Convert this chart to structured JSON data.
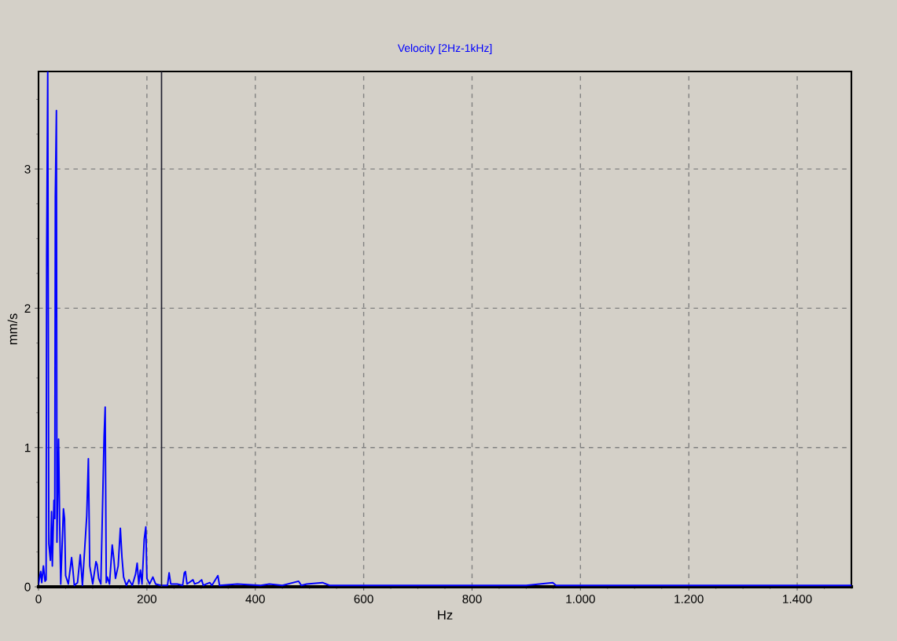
{
  "chart_data": {
    "type": "line",
    "title": "Velocity [2Hz-1kHz]",
    "xlabel": "Hz",
    "ylabel": "mm/s",
    "series": [
      {
        "color": "#0000ff",
        "x": [
          0,
          4,
          6,
          9,
          12,
          14,
          15,
          17,
          19,
          22,
          24,
          25.5,
          28.5,
          30,
          31,
          33,
          34,
          37,
          39,
          41,
          46,
          48,
          50,
          55,
          61,
          63,
          66,
          72,
          77,
          81,
          89,
          92,
          94.5,
          100,
          106,
          108,
          111,
          115,
          121,
          123,
          125,
          127,
          131,
          136,
          139,
          142,
          147,
          151,
          154,
          157,
          162,
          167,
          173,
          179,
          182,
          185,
          188,
          191,
          195,
          198,
          200,
          205,
          211,
          216,
          226,
          238,
          241,
          244,
          256,
          266,
          269,
          271,
          274,
          285,
          288,
          295,
          301,
          304,
          316,
          320,
          331,
          334,
          367,
          410,
          426,
          450,
          480,
          485,
          495,
          524,
          537,
          585,
          640,
          700,
          800,
          900,
          949,
          955,
          1100,
          1300,
          1500
        ],
        "values": [
          0.02,
          0.11,
          0.03,
          0.15,
          0.04,
          0.05,
          2.37,
          3.7,
          0.31,
          0.19,
          0.54,
          0.15,
          0.62,
          0.49,
          2.8,
          3.42,
          0.32,
          1.06,
          0.46,
          0.02,
          0.56,
          0.49,
          0.08,
          0.02,
          0.21,
          0.14,
          0.01,
          0.03,
          0.23,
          0.01,
          0.51,
          0.92,
          0.15,
          0.02,
          0.18,
          0.16,
          0.06,
          0.02,
          1.08,
          1.29,
          0.03,
          0.07,
          0.02,
          0.3,
          0.2,
          0.06,
          0.15,
          0.42,
          0.21,
          0.07,
          0.01,
          0.05,
          0.01,
          0.09,
          0.17,
          0.02,
          0.12,
          0.02,
          0.34,
          0.43,
          0.06,
          0.02,
          0.07,
          0.02,
          0.01,
          0.01,
          0.1,
          0.02,
          0.02,
          0.01,
          0.1,
          0.11,
          0.02,
          0.05,
          0.02,
          0.03,
          0.05,
          0.01,
          0.03,
          0.01,
          0.08,
          0.01,
          0.02,
          0.01,
          0.02,
          0.01,
          0.04,
          0.01,
          0.02,
          0.03,
          0.01,
          0.01,
          0.01,
          0.01,
          0.01,
          0.01,
          0.03,
          0.01,
          0.01,
          0.01,
          0.01
        ]
      }
    ],
    "xlim": [
      0,
      1500
    ],
    "xticks": [
      0,
      200,
      400,
      600,
      800,
      {
        "value": 1000,
        "label": "1.000"
      },
      {
        "value": 1200,
        "label": "1.200"
      },
      {
        "value": 1400,
        "label": "1.400"
      }
    ],
    "ylim": [
      0,
      3.7
    ],
    "yticks": [
      0,
      1,
      2,
      3
    ],
    "ref_lines": [
      {
        "axis": "x",
        "value": 227,
        "color": "#202030"
      }
    ],
    "grid": true,
    "legend": false,
    "marker": "none",
    "line_style": "solid"
  }
}
